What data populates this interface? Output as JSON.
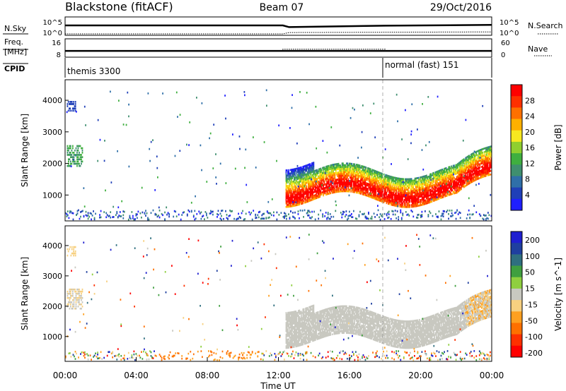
{
  "header": {
    "station": "Blackstone (fitACF)",
    "beam": "Beam 07",
    "date": "29/Oct/2016"
  },
  "chart_data": [
    {
      "type": "line",
      "panel": "noise",
      "left_label": "N.Sky",
      "right_label": "N.Search",
      "left_ticks": [
        "10^5",
        "10^0"
      ],
      "right_ticks": [
        "10^5",
        "10^0"
      ],
      "series": [
        {
          "name": "N.Sky",
          "style": "solid",
          "x_hours": [
            0,
            12.25,
            12.6,
            18,
            24
          ],
          "values": [
            1000,
            1000,
            250,
            800,
            1500
          ]
        },
        {
          "name": "N.Search",
          "style": "dotted",
          "x_hours": [
            0,
            12.25,
            12.6,
            24
          ],
          "values": [
            1,
            1,
            3,
            5
          ]
        }
      ]
    },
    {
      "type": "line",
      "panel": "frequency",
      "left_label_1": "Freq.",
      "left_label_2": "[MHz]",
      "right_label": "Nave",
      "left_ticks": [
        "16",
        "8"
      ],
      "right_ticks": [
        "60",
        "0"
      ],
      "series": [
        {
          "name": "Freq.",
          "style": "solid",
          "x_hours": [
            0,
            24
          ],
          "values": [
            10.5,
            10.5
          ]
        },
        {
          "name": "Nave",
          "style": "dotted",
          "x_hours": [
            0,
            12.25,
            12.25,
            18,
            18,
            24
          ],
          "values": [
            20,
            20,
            25,
            25,
            20,
            20
          ]
        }
      ]
    },
    {
      "type": "table",
      "panel": "cpid",
      "label": "CPID",
      "modes": [
        {
          "start_hour": 0,
          "name": "themis 3300"
        },
        {
          "start_hour": 18,
          "name": "normal (fast) 151"
        }
      ]
    },
    {
      "type": "heatmap",
      "panel": "power",
      "ylabel": "Slant Range [km]",
      "yticks": [
        1000,
        2000,
        3000,
        4000
      ],
      "ylim": [
        180,
        4650
      ],
      "colorbar_label": "Power [dB]",
      "colorbar_ticks": [
        4,
        8,
        12,
        16,
        20,
        24,
        28
      ],
      "colorbar_range": [
        0,
        32
      ],
      "colors": [
        "#1f1fff",
        "#1f3fb8",
        "#2f6fa8",
        "#3f8f6f",
        "#3faf3f",
        "#8fcf2f",
        "#f7e820",
        "#ffb000",
        "#ff7000",
        "#ff3000",
        "#ff0000"
      ]
    },
    {
      "type": "heatmap",
      "panel": "velocity",
      "ylabel": "Slant Range [km]",
      "yticks": [
        1000,
        2000,
        3000,
        4000
      ],
      "ylim": [
        180,
        4650
      ],
      "colorbar_label": "Velocity [m s^-1]",
      "colorbar_ticks": [
        "200",
        "100",
        "50",
        "15",
        "-15",
        "-50",
        "-100",
        "-200"
      ],
      "colors": [
        "#1f1fd0",
        "#1f3f9f",
        "#2f6f7f",
        "#3f9f3f",
        "#8fcf3f",
        "#c8c8c0",
        "#f7d080",
        "#ffa020",
        "#ff7000",
        "#ff3000",
        "#ff0000"
      ]
    }
  ],
  "xaxis": {
    "label": "Time UT",
    "ticks": [
      "00:00",
      "04:00",
      "08:00",
      "12:00",
      "16:00",
      "20:00",
      "00:00"
    ],
    "range_hours": [
      0,
      24
    ]
  }
}
